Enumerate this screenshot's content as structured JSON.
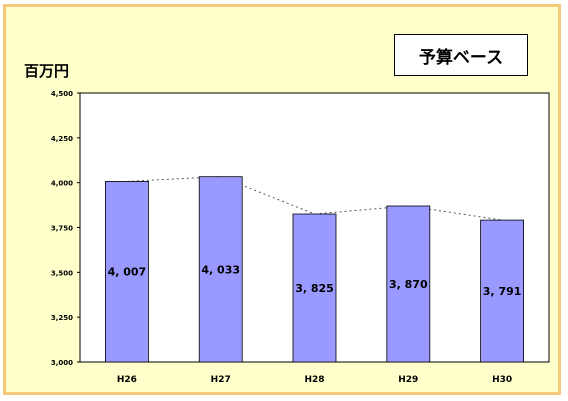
{
  "chart_data": {
    "type": "bar",
    "title": "",
    "ylabel": "百万円",
    "xlabel": "",
    "legend_label": "予算ベース",
    "legend_position": "top-right",
    "categories": [
      "H26",
      "H27",
      "H28",
      "H29",
      "H30"
    ],
    "values": [
      4007,
      4033,
      3825,
      3870,
      3791
    ],
    "value_labels": [
      "4, 007",
      "4, 033",
      "3, 825",
      "3, 870",
      "3, 791"
    ],
    "ylim": [
      3000,
      4500
    ],
    "yticks": [
      3000,
      3250,
      3500,
      3750,
      4000,
      4250,
      4500
    ],
    "ytick_labels": [
      "3,000",
      "3,250",
      "3,500",
      "3,750",
      "4,000",
      "4,250",
      "4,500"
    ],
    "grid": false,
    "trend_line": "dashed",
    "bar_color": "#9999ff",
    "background_color": "#ffffcc",
    "frame_color": "#f5c97a"
  }
}
